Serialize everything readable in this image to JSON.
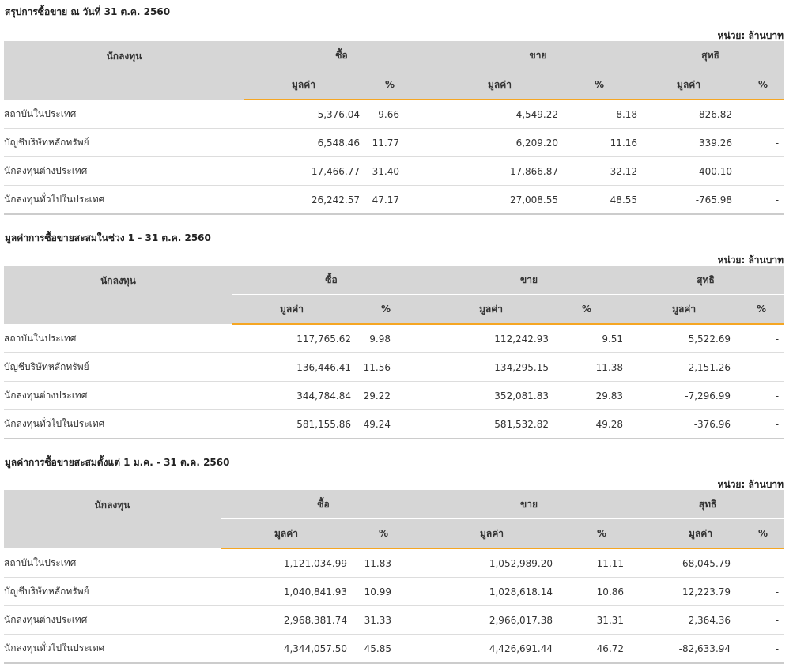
{
  "unit_label": "หน่วย: ล้านบาท",
  "headers": {
    "investor": "นักลงทุน",
    "buy": "ซื้อ",
    "sell": "ขาย",
    "net": "สุทธิ",
    "value": "มูลค่า",
    "percent": "%"
  },
  "sections": [
    {
      "title": "สรุปการซื้อขาย ณ วันที่ 31 ต.ค. 2560",
      "rows": [
        {
          "name": "สถาบันในประเทศ",
          "buy_value": "5,376.04",
          "buy_pct": "9.66",
          "sell_value": "4,549.22",
          "sell_pct": "8.18",
          "net_value": "826.82",
          "net_pct": "-",
          "net_sign": "pos"
        },
        {
          "name": "บัญชีบริษัทหลักทรัพย์",
          "buy_value": "6,548.46",
          "buy_pct": "11.77",
          "sell_value": "6,209.20",
          "sell_pct": "11.16",
          "net_value": "339.26",
          "net_pct": "-",
          "net_sign": "pos"
        },
        {
          "name": "นักลงทุนต่างประเทศ",
          "buy_value": "17,466.77",
          "buy_pct": "31.40",
          "sell_value": "17,866.87",
          "sell_pct": "32.12",
          "net_value": "-400.10",
          "net_pct": "-",
          "net_sign": "neg"
        },
        {
          "name": "นักลงทุนทั่วไปในประเทศ",
          "buy_value": "26,242.57",
          "buy_pct": "47.17",
          "sell_value": "27,008.55",
          "sell_pct": "48.55",
          "net_value": "-765.98",
          "net_pct": "-",
          "net_sign": "neg"
        }
      ]
    },
    {
      "title": "มูลค่าการซื้อขายสะสมในช่วง 1 - 31 ต.ค. 2560",
      "rows": [
        {
          "name": "สถาบันในประเทศ",
          "buy_value": "117,765.62",
          "buy_pct": "9.98",
          "sell_value": "112,242.93",
          "sell_pct": "9.51",
          "net_value": "5,522.69",
          "net_pct": "-",
          "net_sign": "pos"
        },
        {
          "name": "บัญชีบริษัทหลักทรัพย์",
          "buy_value": "136,446.41",
          "buy_pct": "11.56",
          "sell_value": "134,295.15",
          "sell_pct": "11.38",
          "net_value": "2,151.26",
          "net_pct": "-",
          "net_sign": "pos"
        },
        {
          "name": "นักลงทุนต่างประเทศ",
          "buy_value": "344,784.84",
          "buy_pct": "29.22",
          "sell_value": "352,081.83",
          "sell_pct": "29.83",
          "net_value": "-7,296.99",
          "net_pct": "-",
          "net_sign": "neg"
        },
        {
          "name": "นักลงทุนทั่วไปในประเทศ",
          "buy_value": "581,155.86",
          "buy_pct": "49.24",
          "sell_value": "581,532.82",
          "sell_pct": "49.28",
          "net_value": "-376.96",
          "net_pct": "-",
          "net_sign": "neg"
        }
      ]
    },
    {
      "title": "มูลค่าการซื้อขายสะสมตั้งแต่ 1 ม.ค. - 31 ต.ค. 2560",
      "rows": [
        {
          "name": "สถาบันในประเทศ",
          "buy_value": "1,121,034.99",
          "buy_pct": "11.83",
          "sell_value": "1,052,989.20",
          "sell_pct": "11.11",
          "net_value": "68,045.79",
          "net_pct": "-",
          "net_sign": "pos"
        },
        {
          "name": "บัญชีบริษัทหลักทรัพย์",
          "buy_value": "1,040,841.93",
          "buy_pct": "10.99",
          "sell_value": "1,028,618.14",
          "sell_pct": "10.86",
          "net_value": "12,223.79",
          "net_pct": "-",
          "net_sign": "pos"
        },
        {
          "name": "นักลงทุนต่างประเทศ",
          "buy_value": "2,968,381.74",
          "buy_pct": "31.33",
          "sell_value": "2,966,017.38",
          "sell_pct": "31.31",
          "net_value": "2,364.36",
          "net_pct": "-",
          "net_sign": "pos"
        },
        {
          "name": "นักลงทุนทั่วไปในประเทศ",
          "buy_value": "4,344,057.50",
          "buy_pct": "45.85",
          "sell_value": "4,426,691.44",
          "sell_pct": "46.72",
          "net_value": "-82,633.94",
          "net_pct": "-",
          "net_sign": "neg"
        }
      ]
    }
  ]
}
